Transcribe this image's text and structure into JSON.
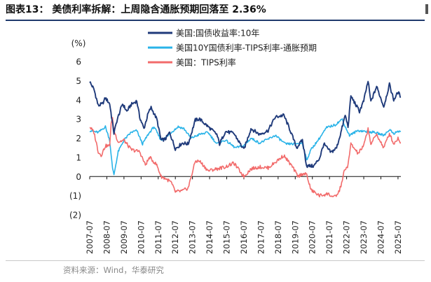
{
  "title": "图表13： 美债利率拆解：上周隐含通胀预期回落至 2.36%",
  "source": "资料来源：Wind，华泰研究",
  "chart_data": {
    "type": "line",
    "ylabel_unit": "(%)",
    "ylim": [
      -2,
      6
    ],
    "yticks": [
      "6",
      "5",
      "4",
      "3",
      "2",
      "1",
      "0",
      "(1)",
      "(2)"
    ],
    "xticks": [
      "2007-07",
      "2008-07",
      "2009-07",
      "2010-07",
      "2011-07",
      "2012-07",
      "2013-07",
      "2014-07",
      "2015-07",
      "2016-07",
      "2017-07",
      "2018-07",
      "2019-07",
      "2020-07",
      "2021-07",
      "2022-07",
      "2023-07",
      "2024-07",
      "2025-07"
    ],
    "legend": "top-center",
    "grid": false,
    "series": [
      {
        "name": "美国:国债收益率:10年",
        "color": "#1f3a7a",
        "points": [
          [
            "2007-07",
            4.95
          ],
          [
            "2007-10",
            4.55
          ],
          [
            "2008-01",
            3.7
          ],
          [
            "2008-04",
            3.8
          ],
          [
            "2008-06",
            4.1
          ],
          [
            "2008-09",
            3.8
          ],
          [
            "2008-12",
            2.25
          ],
          [
            "2009-02",
            2.9
          ],
          [
            "2009-06",
            3.8
          ],
          [
            "2009-09",
            3.4
          ],
          [
            "2009-12",
            3.75
          ],
          [
            "2010-04",
            3.95
          ],
          [
            "2010-06",
            3.1
          ],
          [
            "2010-09",
            2.5
          ],
          [
            "2010-12",
            3.3
          ],
          [
            "2011-02",
            3.6
          ],
          [
            "2011-06",
            3.0
          ],
          [
            "2011-09",
            1.9
          ],
          [
            "2011-12",
            1.95
          ],
          [
            "2012-03",
            2.3
          ],
          [
            "2012-07",
            1.45
          ],
          [
            "2012-12",
            1.75
          ],
          [
            "2013-04",
            1.7
          ],
          [
            "2013-09",
            2.95
          ],
          [
            "2013-12",
            3.0
          ],
          [
            "2014-06",
            2.6
          ],
          [
            "2014-12",
            2.2
          ],
          [
            "2015-02",
            1.7
          ],
          [
            "2015-06",
            2.35
          ],
          [
            "2015-12",
            2.25
          ],
          [
            "2016-07",
            1.4
          ],
          [
            "2016-12",
            2.5
          ],
          [
            "2017-06",
            2.2
          ],
          [
            "2017-12",
            2.4
          ],
          [
            "2018-05",
            3.1
          ],
          [
            "2018-11",
            3.2
          ],
          [
            "2019-03",
            2.5
          ],
          [
            "2019-08",
            1.5
          ],
          [
            "2019-12",
            1.9
          ],
          [
            "2020-03",
            0.55
          ],
          [
            "2020-08",
            0.55
          ],
          [
            "2020-12",
            0.95
          ],
          [
            "2021-03",
            1.7
          ],
          [
            "2021-08",
            1.25
          ],
          [
            "2021-12",
            1.5
          ],
          [
            "2022-03",
            2.3
          ],
          [
            "2022-06",
            3.2
          ],
          [
            "2022-08",
            2.6
          ],
          [
            "2022-10",
            4.2
          ],
          [
            "2023-04",
            3.4
          ],
          [
            "2023-07",
            3.95
          ],
          [
            "2023-10",
            4.98
          ],
          [
            "2023-12",
            3.9
          ],
          [
            "2024-04",
            4.7
          ],
          [
            "2024-09",
            3.65
          ],
          [
            "2025-01",
            4.8
          ],
          [
            "2025-04",
            4.0
          ],
          [
            "2025-07",
            4.4
          ],
          [
            "2025-09",
            4.15
          ]
        ]
      },
      {
        "name": "美国10Y国债利率-TIPS利率-通胀预期",
        "color": "#29b3e8",
        "points": [
          [
            "2007-07",
            2.4
          ],
          [
            "2007-10",
            2.35
          ],
          [
            "2008-01",
            2.3
          ],
          [
            "2008-06",
            2.6
          ],
          [
            "2008-09",
            1.9
          ],
          [
            "2008-11",
            0.4
          ],
          [
            "2008-12",
            0.1
          ],
          [
            "2009-03",
            1.3
          ],
          [
            "2009-07",
            1.9
          ],
          [
            "2009-12",
            2.3
          ],
          [
            "2010-04",
            2.4
          ],
          [
            "2010-08",
            1.7
          ],
          [
            "2010-12",
            2.2
          ],
          [
            "2011-04",
            2.6
          ],
          [
            "2011-09",
            1.9
          ],
          [
            "2011-12",
            2.0
          ],
          [
            "2012-04",
            2.3
          ],
          [
            "2012-09",
            2.6
          ],
          [
            "2013-01",
            2.5
          ],
          [
            "2013-06",
            2.0
          ],
          [
            "2013-12",
            2.2
          ],
          [
            "2014-06",
            2.3
          ],
          [
            "2014-12",
            1.7
          ],
          [
            "2015-06",
            1.9
          ],
          [
            "2016-01",
            1.5
          ],
          [
            "2016-07",
            1.6
          ],
          [
            "2016-12",
            2.0
          ],
          [
            "2017-06",
            1.75
          ],
          [
            "2017-12",
            1.95
          ],
          [
            "2018-05",
            2.15
          ],
          [
            "2018-12",
            1.7
          ],
          [
            "2019-06",
            1.7
          ],
          [
            "2019-12",
            1.75
          ],
          [
            "2020-03",
            0.85
          ],
          [
            "2020-06",
            1.4
          ],
          [
            "2020-12",
            2.0
          ],
          [
            "2021-05",
            2.55
          ],
          [
            "2021-11",
            2.7
          ],
          [
            "2022-04",
            3.0
          ],
          [
            "2022-06",
            2.6
          ],
          [
            "2022-09",
            2.15
          ],
          [
            "2023-03",
            2.4
          ],
          [
            "2023-09",
            2.35
          ],
          [
            "2024-03",
            2.3
          ],
          [
            "2024-09",
            2.15
          ],
          [
            "2025-01",
            2.45
          ],
          [
            "2025-04",
            2.25
          ],
          [
            "2025-07",
            2.35
          ],
          [
            "2025-09",
            2.36
          ]
        ]
      },
      {
        "name": "美国：TIPS利率",
        "color": "#f26b6b",
        "points": [
          [
            "2007-07",
            2.6
          ],
          [
            "2007-10",
            2.3
          ],
          [
            "2008-01",
            1.3
          ],
          [
            "2008-03",
            1.1
          ],
          [
            "2008-06",
            1.6
          ],
          [
            "2008-09",
            1.6
          ],
          [
            "2008-10",
            2.8
          ],
          [
            "2008-11",
            3.0
          ],
          [
            "2008-12",
            2.4
          ],
          [
            "2009-03",
            1.8
          ],
          [
            "2009-07",
            1.9
          ],
          [
            "2009-12",
            1.4
          ],
          [
            "2010-06",
            1.3
          ],
          [
            "2010-10",
            0.6
          ],
          [
            "2011-01",
            1.0
          ],
          [
            "2011-06",
            0.6
          ],
          [
            "2011-09",
            0.0
          ],
          [
            "2011-12",
            -0.1
          ],
          [
            "2012-04",
            -0.3
          ],
          [
            "2012-07",
            -0.8
          ],
          [
            "2012-12",
            -0.75
          ],
          [
            "2013-04",
            -0.6
          ],
          [
            "2013-09",
            0.8
          ],
          [
            "2013-12",
            0.8
          ],
          [
            "2014-06",
            0.3
          ],
          [
            "2014-12",
            0.4
          ],
          [
            "2015-06",
            0.5
          ],
          [
            "2015-12",
            0.7
          ],
          [
            "2016-07",
            0.0
          ],
          [
            "2016-12",
            0.4
          ],
          [
            "2017-06",
            0.5
          ],
          [
            "2017-12",
            0.45
          ],
          [
            "2018-06",
            0.8
          ],
          [
            "2018-11",
            1.1
          ],
          [
            "2019-05",
            0.5
          ],
          [
            "2019-09",
            0.0
          ],
          [
            "2019-12",
            0.15
          ],
          [
            "2020-03",
            0.1
          ],
          [
            "2020-06",
            -0.7
          ],
          [
            "2020-12",
            -1.0
          ],
          [
            "2021-06",
            -0.9
          ],
          [
            "2021-10",
            -1.1
          ],
          [
            "2022-01",
            -0.9
          ],
          [
            "2022-03",
            -0.5
          ],
          [
            "2022-05",
            0.2
          ],
          [
            "2022-08",
            0.6
          ],
          [
            "2022-10",
            1.7
          ],
          [
            "2023-03",
            1.2
          ],
          [
            "2023-07",
            1.6
          ],
          [
            "2023-10",
            2.5
          ],
          [
            "2023-12",
            1.7
          ],
          [
            "2024-04",
            2.2
          ],
          [
            "2024-09",
            1.5
          ],
          [
            "2025-01",
            2.25
          ],
          [
            "2025-04",
            1.7
          ],
          [
            "2025-07",
            2.0
          ],
          [
            "2025-09",
            1.75
          ]
        ]
      }
    ]
  }
}
